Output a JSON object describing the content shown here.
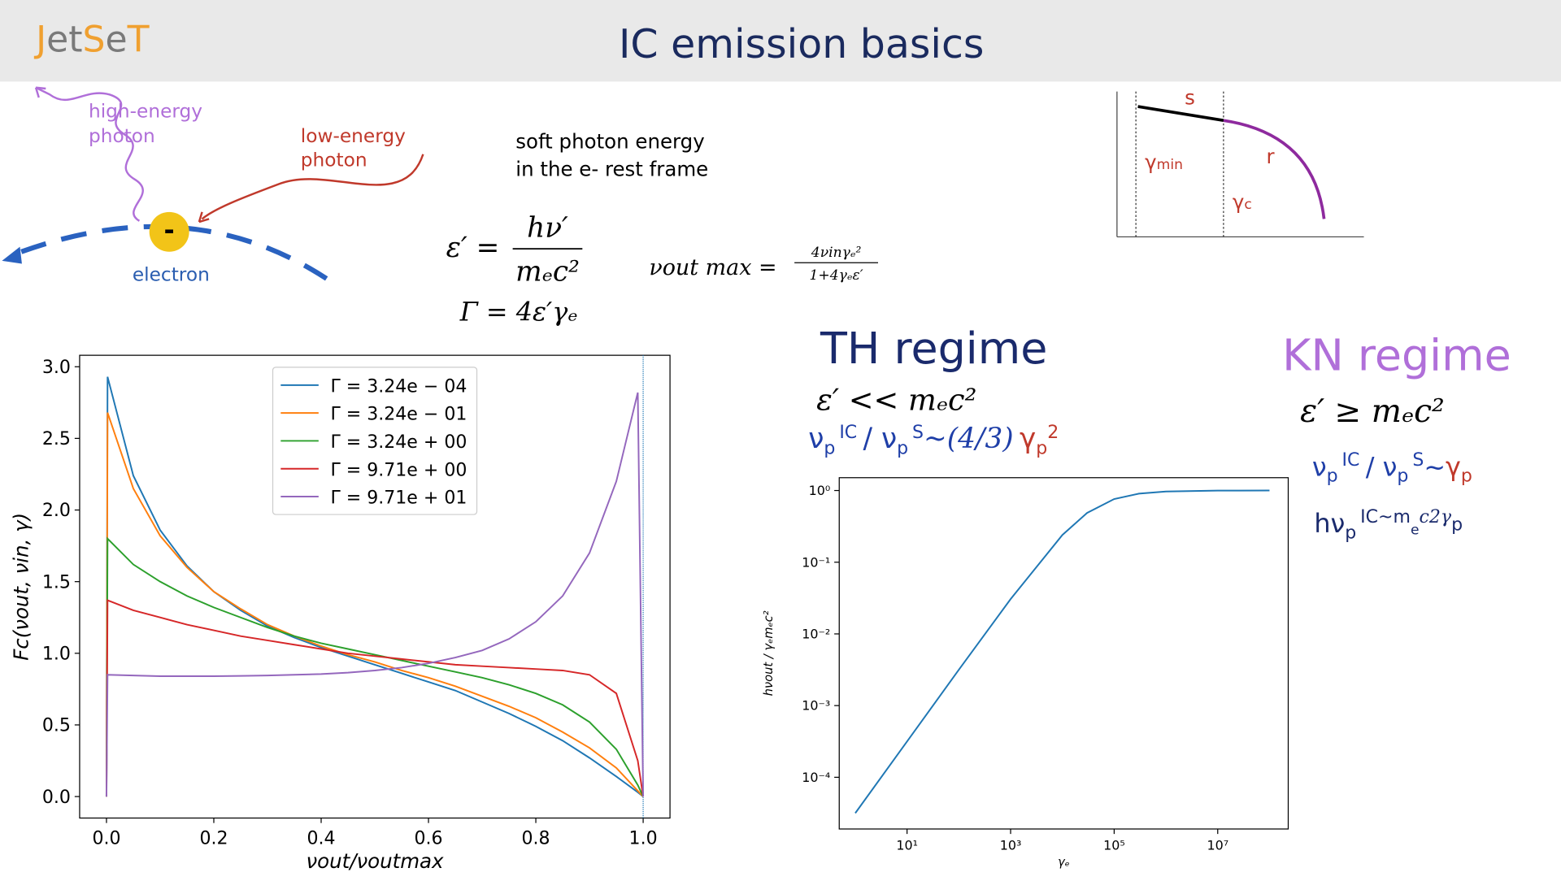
{
  "logo": [
    "J",
    "et",
    "S",
    "e",
    "T"
  ],
  "header": {
    "title": "IC emission basics"
  },
  "diagram": {
    "high_energy": [
      "high-energy",
      "photon"
    ],
    "low_energy": [
      "low-energy",
      "photon"
    ],
    "electron": "electron",
    "charge": "-"
  },
  "soft_photon": [
    "soft photon  energy",
    "in the e- rest frame"
  ],
  "equations": {
    "eps": {
      "lhs": "ε′ =",
      "num": "hν′",
      "den": "mₑc²"
    },
    "gamma": "Γ = 4ε′γₑ",
    "nu_max": {
      "lhs": "νout max =",
      "num": "4νinγₑ²",
      "den": "1+4γₑε′"
    }
  },
  "inset": {
    "s": "s",
    "r": "r",
    "gmin": [
      "γ",
      "min"
    ],
    "gc": [
      "γ",
      "c"
    ]
  },
  "th": {
    "title": "TH regime",
    "condition": "ε′  <<  mₑc²",
    "ratio": [
      "ν",
      "p",
      "IC",
      "/ ν",
      "p",
      "S",
      "~(4/3)"
    ],
    "ratio_gamma": [
      "γ",
      "p",
      "2"
    ]
  },
  "kn": {
    "title": "KN regime",
    "condition": "ε′ ≥ mₑc²",
    "ratio": [
      "ν",
      "p",
      "IC",
      "/ ν",
      "p",
      "S",
      "~"
    ],
    "ratio_gamma": [
      "γ",
      "p"
    ],
    "energy": [
      "hν",
      "p",
      "IC~m",
      "e",
      "c2γ",
      "p"
    ]
  },
  "chart_data": [
    {
      "type": "line",
      "x_label": "νout/νoutmax",
      "y_label": "Fc(νout, νin, γ)",
      "x": [
        0,
        0.002,
        0.05,
        0.1,
        0.15,
        0.2,
        0.25,
        0.3,
        0.35,
        0.4,
        0.45,
        0.5,
        0.55,
        0.6,
        0.65,
        0.7,
        0.75,
        0.8,
        0.85,
        0.9,
        0.95,
        0.99,
        1.0
      ],
      "series": [
        {
          "name": "Γ = 3.24e − 04",
          "color": "#1f77b4",
          "values": [
            0,
            2.93,
            2.24,
            1.86,
            1.61,
            1.43,
            1.3,
            1.19,
            1.11,
            1.04,
            0.98,
            0.92,
            0.86,
            0.8,
            0.74,
            0.66,
            0.58,
            0.49,
            0.39,
            0.27,
            0.14,
            0.03,
            0
          ]
        },
        {
          "name": "Γ = 3.24e − 01",
          "color": "#ff7f0e",
          "values": [
            0,
            2.68,
            2.15,
            1.82,
            1.6,
            1.43,
            1.31,
            1.2,
            1.12,
            1.05,
            0.99,
            0.94,
            0.88,
            0.83,
            0.77,
            0.7,
            0.63,
            0.55,
            0.45,
            0.34,
            0.2,
            0.04,
            0
          ]
        },
        {
          "name": "Γ = 3.24e + 00",
          "color": "#2ca02c",
          "values": [
            0,
            1.8,
            1.62,
            1.5,
            1.4,
            1.32,
            1.25,
            1.18,
            1.12,
            1.07,
            1.03,
            0.99,
            0.95,
            0.91,
            0.87,
            0.83,
            0.78,
            0.72,
            0.64,
            0.52,
            0.33,
            0.08,
            0
          ]
        },
        {
          "name": "Γ = 9.71e + 00",
          "color": "#d62728",
          "values": [
            0,
            1.37,
            1.3,
            1.25,
            1.2,
            1.16,
            1.12,
            1.09,
            1.06,
            1.03,
            1.0,
            0.98,
            0.96,
            0.94,
            0.92,
            0.91,
            0.9,
            0.89,
            0.88,
            0.85,
            0.72,
            0.25,
            0
          ]
        },
        {
          "name": "Γ = 9.71e + 01",
          "color": "#9467bd",
          "values": [
            0,
            0.85,
            0.845,
            0.84,
            0.84,
            0.84,
            0.842,
            0.845,
            0.85,
            0.855,
            0.865,
            0.88,
            0.9,
            0.93,
            0.97,
            1.02,
            1.1,
            1.22,
            1.4,
            1.7,
            2.2,
            2.82,
            0
          ]
        }
      ],
      "xlim": [
        -0.05,
        1.05
      ],
      "ylim": [
        -0.15,
        3.08
      ],
      "xticks": [
        {
          "value": 0,
          "label": "0.0"
        },
        {
          "value": 0.2,
          "label": "0.2"
        },
        {
          "value": 0.4,
          "label": "0.4"
        },
        {
          "value": 0.6,
          "label": "0.6"
        },
        {
          "value": 0.8,
          "label": "0.8"
        },
        {
          "value": 1,
          "label": "1.0"
        }
      ],
      "yticks": [
        {
          "value": 0,
          "label": "0.0"
        },
        {
          "value": 0.5,
          "label": "0.5"
        },
        {
          "value": 1,
          "label": "1.0"
        },
        {
          "value": 1.5,
          "label": "1.5"
        },
        {
          "value": 2,
          "label": "2.0"
        },
        {
          "value": 2.5,
          "label": "2.5"
        },
        {
          "value": 3,
          "label": "3.0"
        }
      ],
      "vline": 1,
      "vline_color": "#1f77b4",
      "legend": "upper center"
    },
    {
      "type": "line",
      "x_label": "γₑ",
      "y_label": "hνout / γₑmₑc²",
      "xscale": "log",
      "yscale": "log",
      "x": [
        1,
        10,
        100,
        1000,
        10000,
        30000,
        100000,
        300000,
        1000000,
        10000000,
        100000000
      ],
      "series": [
        {
          "color": "#1f77b4",
          "values": [
            3.16e-05,
            0.000316,
            0.00316,
            0.0306,
            0.24,
            0.487,
            0.76,
            0.905,
            0.969,
            0.997,
            1.0
          ]
        }
      ],
      "xlim": [
        0.49,
        230000000
      ],
      "ylim": [
        1.9e-05,
        1.51
      ],
      "xticks": [
        {
          "value": 10,
          "label": "10¹"
        },
        {
          "value": 1000,
          "label": "10³"
        },
        {
          "value": 100000,
          "label": "10⁵"
        },
        {
          "value": 10000000,
          "label": "10⁷"
        }
      ],
      "yticks": [
        {
          "value": 1,
          "label": "10⁰"
        },
        {
          "value": 0.1,
          "label": "10⁻¹"
        },
        {
          "value": 0.01,
          "label": "10⁻²"
        },
        {
          "value": 0.001,
          "label": "10⁻³"
        },
        {
          "value": 0.0001,
          "label": "10⁻⁴"
        }
      ]
    }
  ]
}
